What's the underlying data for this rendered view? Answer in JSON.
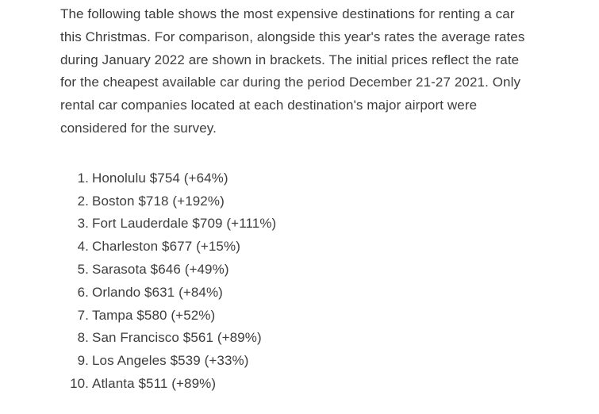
{
  "colors": {
    "text": "#3d3d3d",
    "background": "#ffffff"
  },
  "article": {
    "intro": "The following table shows the most expensive destinations for renting a car this Christmas. For comparison, alongside this year's rates the average rates during January 2022 are shown in brackets. The initial prices reflect the rate for the cheapest available car during the period December 21-27 2021. Only rental car companies located at each destination's major airport were considered for the survey."
  },
  "list": {
    "items": [
      {
        "rank": "1.",
        "city": "Honolulu",
        "price": "$754",
        "change": "(+64%)"
      },
      {
        "rank": "2.",
        "city": "Boston",
        "price": "$718",
        "change": "(+192%)"
      },
      {
        "rank": "3.",
        "city": "Fort Lauderdale",
        "price": "$709",
        "change": "(+111%)"
      },
      {
        "rank": "4.",
        "city": "Charleston",
        "price": "$677",
        "change": "(+15%)"
      },
      {
        "rank": "5.",
        "city": "Sarasota",
        "price": "$646",
        "change": "(+49%)"
      },
      {
        "rank": "6.",
        "city": "Orlando",
        "price": "$631",
        "change": "(+84%)"
      },
      {
        "rank": "7.",
        "city": "Tampa",
        "price": "$580",
        "change": "(+52%)"
      },
      {
        "rank": "8.",
        "city": "San Francisco",
        "price": "$561",
        "change": "(+89%)"
      },
      {
        "rank": "9.",
        "city": "Los Angeles",
        "price": "$539",
        "change": "(+33%)"
      },
      {
        "rank": "10.",
        "city": "Atlanta",
        "price": "$511",
        "change": "(+89%)"
      }
    ]
  }
}
